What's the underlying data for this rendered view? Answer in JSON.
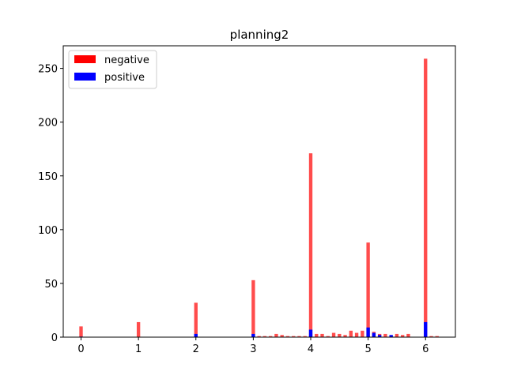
{
  "chart_data": {
    "type": "bar",
    "title": "planning2",
    "xlabel": "",
    "ylabel": "",
    "xlim": [
      -0.31,
      6.52
    ],
    "ylim": [
      0,
      271
    ],
    "x_ticks": [
      0,
      1,
      2,
      3,
      4,
      5,
      6
    ],
    "y_ticks": [
      0,
      50,
      100,
      150,
      200,
      250
    ],
    "bar_width": 0.06,
    "legend_position": "top-left",
    "series": [
      {
        "name": "negative",
        "color": "#ff0000",
        "alpha": 0.7,
        "x": [
          0.0,
          1.0,
          2.0,
          3.0,
          3.1,
          3.2,
          3.3,
          3.4,
          3.5,
          3.6,
          3.7,
          3.8,
          3.9,
          4.0,
          4.1,
          4.2,
          4.3,
          4.4,
          4.5,
          4.6,
          4.7,
          4.8,
          4.9,
          5.0,
          5.1,
          5.2,
          5.3,
          5.4,
          5.5,
          5.6,
          5.7,
          6.0,
          6.1,
          6.2
        ],
        "values": [
          10,
          14,
          32,
          53,
          1,
          1,
          1,
          3,
          2,
          1,
          1,
          1,
          1,
          171,
          3,
          3,
          1,
          4,
          3,
          2,
          6,
          4,
          6,
          88,
          5,
          3,
          3,
          1,
          3,
          2,
          3,
          259,
          1,
          1
        ]
      },
      {
        "name": "positive",
        "color": "#0000ff",
        "alpha": 1.0,
        "x": [
          0.0,
          2.0,
          3.0,
          4.0,
          5.0,
          5.1,
          5.2,
          5.4,
          6.0
        ],
        "values": [
          0.5,
          3,
          3,
          7,
          9,
          4,
          2,
          2,
          14
        ]
      }
    ]
  }
}
